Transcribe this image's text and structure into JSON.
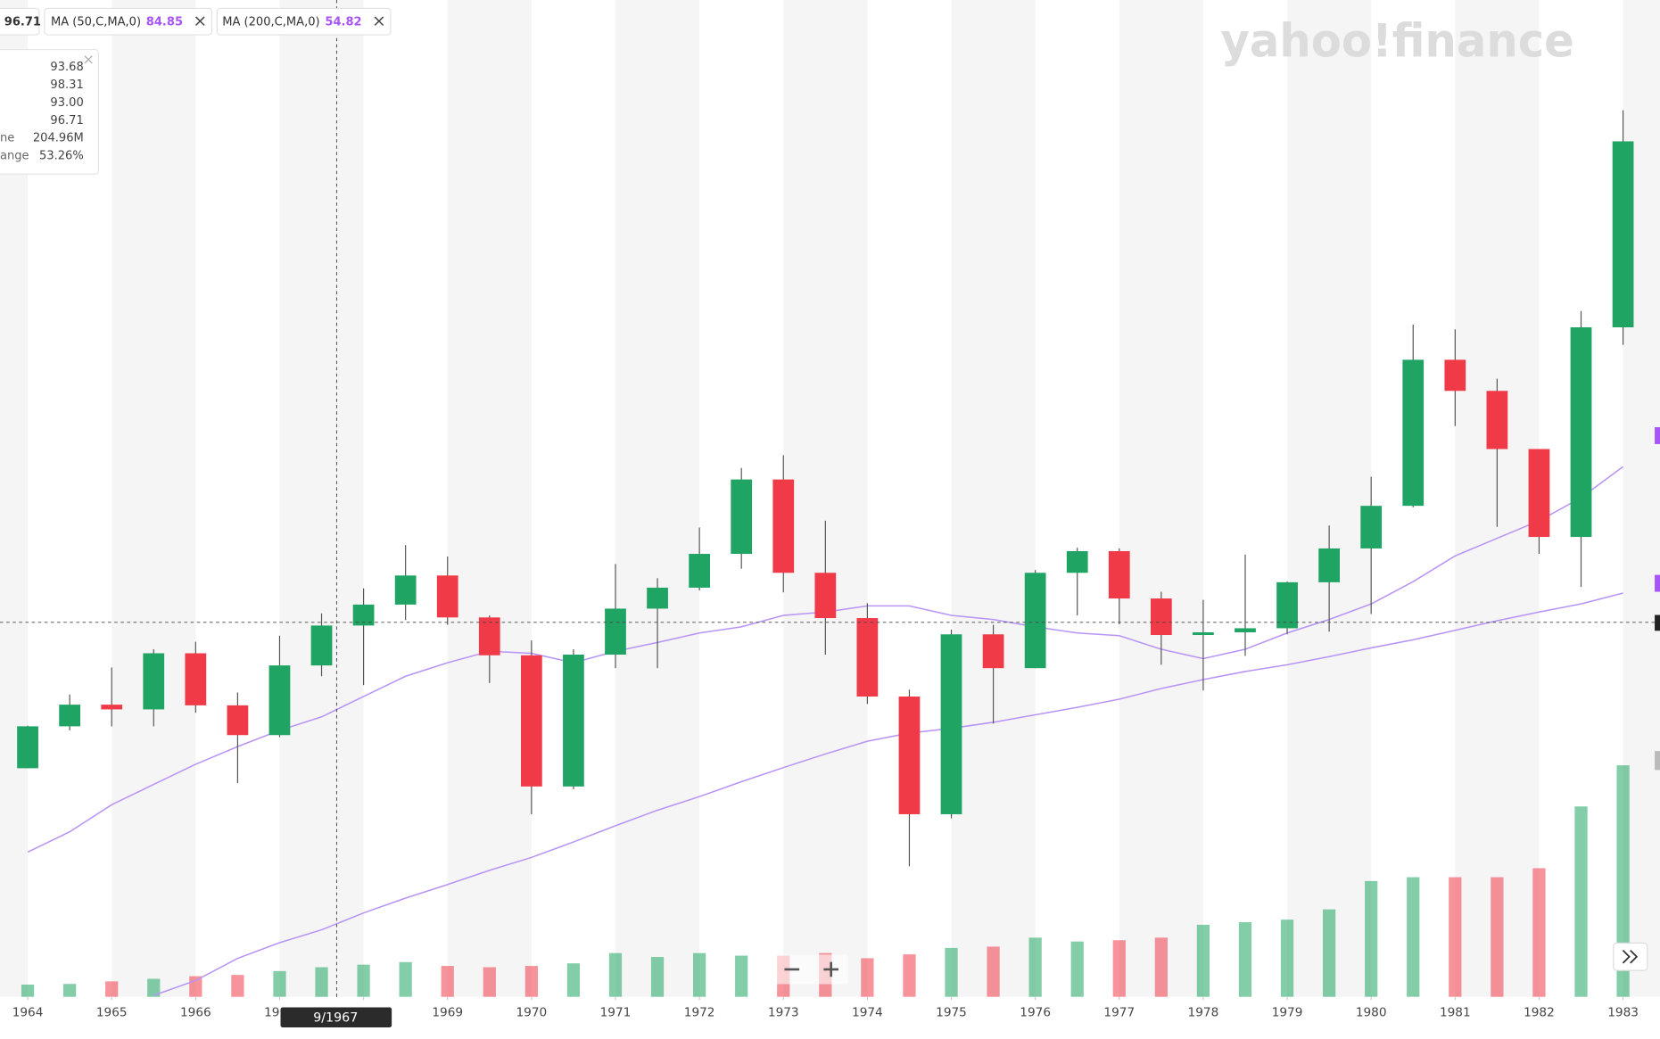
{
  "chart_data": {
    "type": "candlestick",
    "x": [
      1964,
      1964.5,
      1965,
      1965.5,
      1966,
      1966.5,
      1967,
      1967.5,
      1968,
      1968.5,
      1969,
      1969.5,
      1970,
      1970.5,
      1971,
      1971.5,
      1972,
      1972.5,
      1973,
      1973.5,
      1974,
      1974.5,
      1975,
      1975.5,
      1976,
      1976.5,
      1977,
      1977.5,
      1978,
      1978.5,
      1979,
      1979.5,
      1980,
      1980.5,
      1981,
      1981.5,
      1982,
      1982.5,
      1983
    ],
    "open": [
      75.4,
      81.6,
      84.8,
      84.1,
      92.4,
      84.7,
      80.3,
      90.6,
      96.5,
      99.6,
      103.9,
      97.7,
      92.1,
      72.7,
      92.2,
      99.0,
      102.1,
      107.1,
      118.1,
      104.3,
      97.6,
      86.0,
      68.6,
      95.2,
      90.2,
      104.3,
      107.5,
      100.5,
      95.1,
      95.5,
      96.1,
      102.9,
      107.9,
      114.2,
      135.8,
      131.2,
      122.6,
      109.6,
      140.6
    ],
    "high": [
      81.7,
      86.3,
      90.3,
      93.0,
      94.1,
      86.6,
      95.0,
      98.3,
      102.0,
      108.4,
      106.7,
      98.0,
      94.3,
      93.0,
      105.6,
      103.5,
      111.0,
      119.8,
      121.7,
      112.0,
      99.8,
      87.0,
      95.9,
      96.6,
      104.7,
      108.0,
      107.9,
      101.5,
      100.3,
      107.0,
      103.0,
      111.3,
      118.5,
      141.0,
      140.3,
      133.0,
      122.6,
      143.0,
      172.7
    ],
    "low": [
      75.4,
      81.0,
      81.6,
      81.6,
      83.6,
      73.2,
      80.0,
      89.0,
      87.7,
      97.3,
      96.6,
      88.0,
      68.6,
      72.3,
      90.2,
      90.2,
      101.7,
      104.9,
      101.4,
      92.2,
      84.9,
      60.9,
      68.0,
      82.0,
      90.2,
      98.0,
      96.7,
      90.7,
      86.9,
      92.0,
      95.2,
      95.6,
      98.2,
      114.0,
      126.0,
      111.1,
      107.1,
      102.2,
      138.0
    ],
    "close": [
      81.6,
      84.8,
      84.1,
      92.4,
      84.7,
      80.3,
      90.6,
      96.5,
      99.6,
      103.9,
      97.7,
      92.1,
      72.7,
      92.2,
      99.0,
      102.1,
      107.1,
      118.1,
      104.3,
      97.6,
      86.0,
      68.6,
      95.2,
      90.2,
      104.3,
      107.5,
      100.5,
      95.1,
      95.5,
      96.1,
      102.9,
      107.9,
      114.2,
      135.8,
      131.2,
      122.6,
      109.6,
      140.6,
      168.1
    ],
    "volume": [
      95,
      100,
      120,
      140,
      160,
      170,
      200,
      230,
      250,
      270,
      240,
      230,
      240,
      260,
      340,
      310,
      340,
      320,
      320,
      340,
      300,
      330,
      380,
      390,
      460,
      430,
      440,
      460,
      560,
      580,
      600,
      680,
      900,
      930,
      930,
      930,
      1000,
      1480,
      1800
    ],
    "volume_lim": [
      0,
      7750
    ],
    "up_color": "#1fa463",
    "down_color": "#f03a47",
    "series": [
      {
        "name": "MA (50,C,MA,0)",
        "color": "#b794f6",
        "values": [
          63,
          66,
          70,
          73,
          76,
          78.6,
          81,
          83,
          86,
          89,
          91,
          92.7,
          92.4,
          91,
          92.7,
          94,
          95.4,
          96.3,
          98,
          98.5,
          99.4,
          99.4,
          98,
          97.4,
          96.3,
          95.4,
          95,
          93,
          91.6,
          93,
          95.4,
          97.4,
          99.7,
          103,
          106.8,
          109.4,
          112,
          115.4,
          120
        ]
      },
      {
        "name": "MA (200,C,MA,0)",
        "color": "#b794f6",
        "values": [
          null,
          null,
          null,
          41.8,
          44,
          47.3,
          49.6,
          51.5,
          54,
          56.2,
          58.2,
          60.3,
          62.2,
          64.5,
          66.9,
          69.2,
          71.2,
          73.4,
          75.5,
          77.5,
          79.4,
          80.6,
          81.3,
          82.2,
          83.3,
          84.4,
          85.6,
          87.2,
          88.5,
          89.7,
          90.7,
          91.9,
          93.2,
          94.4,
          95.8,
          97.2,
          98.5,
          99.7,
          101.3
        ]
      }
    ],
    "xlim": [
      1963.67,
      1983.44
    ],
    "xticks": [
      1964,
      1965,
      1966,
      1967,
      1968,
      1969,
      1970,
      1971,
      1972,
      1973,
      1974,
      1975,
      1976,
      1977,
      1978,
      1979,
      1980,
      1981,
      1982,
      1983
    ],
    "ylim": [
      41.6,
      189
    ],
    "crosshair_label": "9/1967"
  },
  "legend": {
    "close": "96.71",
    "ma_values": [
      "84.85",
      "54.82"
    ]
  },
  "tooltip": {
    "rows": [
      {
        "value": "93.68"
      },
      {
        "value": "98.31"
      },
      {
        "value": "93.00"
      },
      {
        "value": "96.71"
      },
      {
        "label": "ne",
        "value": "204.96M"
      },
      {
        "label": "ange",
        "value": "53.26%"
      }
    ]
  },
  "logo": "yahoo!finance"
}
